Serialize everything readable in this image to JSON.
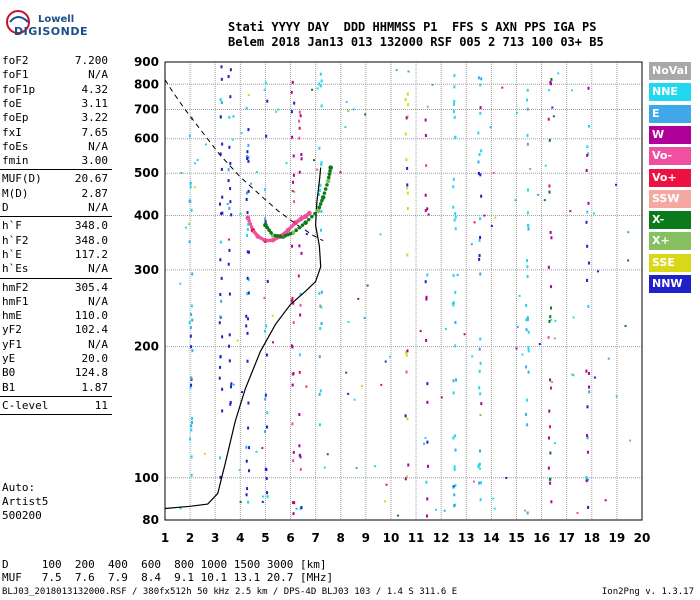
{
  "logo": {
    "line1": "Lowell",
    "line2": "DIGISONDE"
  },
  "header": {
    "line1": "Stati YYYY DAY  DDD HHMMSS P1  FFS S AXN PPS IGA PS",
    "line2": "Belem 2018 Jan13 013 132000 RSF 005 2 713 100 03+ B5"
  },
  "params_group1": [
    {
      "name": "foF2",
      "value": "7.200"
    },
    {
      "name": "foF1",
      "value": "N/A"
    },
    {
      "name": "foF1p",
      "value": "4.32"
    },
    {
      "name": "foE",
      "value": "3.11"
    },
    {
      "name": "foEp",
      "value": "3.22"
    },
    {
      "name": "fxI",
      "value": "7.65"
    },
    {
      "name": "foEs",
      "value": "N/A"
    },
    {
      "name": "fmin",
      "value": "3.00"
    }
  ],
  "params_group2": [
    {
      "name": "MUF(D)",
      "value": "20.67"
    },
    {
      "name": "M(D)",
      "value": "2.87"
    },
    {
      "name": "D",
      "value": "N/A"
    }
  ],
  "params_group3": [
    {
      "name": "h`F",
      "value": "348.0"
    },
    {
      "name": "h`F2",
      "value": "348.0"
    },
    {
      "name": "h`E",
      "value": "117.2"
    },
    {
      "name": "h`Es",
      "value": "N/A"
    }
  ],
  "params_group4": [
    {
      "name": "hmF2",
      "value": "305.4"
    },
    {
      "name": "hmF1",
      "value": "N/A"
    },
    {
      "name": "hmE",
      "value": "110.0"
    },
    {
      "name": "yF2",
      "value": "102.4"
    },
    {
      "name": "yF1",
      "value": "N/A"
    },
    {
      "name": "yE",
      "value": "20.0"
    },
    {
      "name": "B0",
      "value": "124.8"
    },
    {
      "name": "B1",
      "value": "1.87"
    }
  ],
  "params_group5": [
    {
      "name": "C-level",
      "value": "11"
    }
  ],
  "auto": {
    "line1": "Auto:",
    "line2": "Artist5",
    "line3": "500200"
  },
  "legend": [
    {
      "label": "NoVal",
      "color": "#a8a8a8"
    },
    {
      "label": "NNE",
      "color": "#22d8f0"
    },
    {
      "label": "E",
      "color": "#3fa8e8"
    },
    {
      "label": "W",
      "color": "#b0009a"
    },
    {
      "label": "Vo-",
      "color": "#f050a0"
    },
    {
      "label": "Vo+",
      "color": "#ee1040"
    },
    {
      "label": "SSW",
      "color": "#f4a8a0"
    },
    {
      "label": "X-",
      "color": "#0a7a1a"
    },
    {
      "label": "X+",
      "color": "#86c060"
    },
    {
      "label": "SSE",
      "color": "#d8d818"
    },
    {
      "label": "NNW",
      "color": "#2020c8"
    }
  ],
  "dmuf": {
    "line1": "D     100  200  400  600  800 1000 1500 3000 [km]",
    "line2": "MUF   7.5  7.6  7.9  8.4  9.1 10.1 13.1 20.7 [MHz]"
  },
  "footer": {
    "left": "BLJ03_2018013132000.RSF / 380fx512h 50 kHz 2.5 km / DPS-4D BLJ03 103 / 1.4 S 311.6 E",
    "right": "Ion2Png v. 1.3.17"
  },
  "chart_data": {
    "type": "scatter",
    "xlim": [
      1,
      20
    ],
    "ylim": [
      80,
      900
    ],
    "x_ticks": [
      1,
      2,
      3,
      4,
      5,
      6,
      7,
      8,
      9,
      10,
      11,
      12,
      13,
      14,
      15,
      16,
      17,
      18,
      19,
      20
    ],
    "y_ticks": [
      80,
      100,
      200,
      300,
      400,
      500,
      600,
      700,
      800,
      900
    ],
    "y_scale": "log",
    "grid": true,
    "traces": {
      "o_trace": [
        [
          4.3,
          395
        ],
        [
          4.5,
          370
        ],
        [
          4.7,
          358
        ],
        [
          5.0,
          350
        ],
        [
          5.3,
          351
        ],
        [
          5.6,
          358
        ],
        [
          5.9,
          370
        ],
        [
          6.2,
          385
        ],
        [
          6.4,
          392
        ],
        [
          6.6,
          398
        ],
        [
          6.75,
          405
        ]
      ],
      "x_trace": [
        [
          5.0,
          380
        ],
        [
          5.3,
          360
        ],
        [
          5.7,
          358
        ],
        [
          6.1,
          365
        ],
        [
          6.6,
          385
        ],
        [
          7.1,
          410
        ],
        [
          7.3,
          440
        ],
        [
          7.5,
          480
        ],
        [
          7.6,
          515
        ]
      ],
      "profile": [
        [
          1,
          85
        ],
        [
          2,
          86
        ],
        [
          2.7,
          87
        ],
        [
          3.1,
          92
        ],
        [
          3.4,
          108
        ],
        [
          3.8,
          135
        ],
        [
          4.2,
          160
        ],
        [
          4.8,
          195
        ],
        [
          5.4,
          225
        ],
        [
          6.0,
          250
        ],
        [
          6.6,
          268
        ],
        [
          7.0,
          282
        ],
        [
          7.2,
          305
        ],
        [
          7.15,
          340
        ],
        [
          7.0,
          380
        ],
        [
          7.05,
          430
        ],
        [
          7.15,
          480
        ],
        [
          7.2,
          515
        ]
      ],
      "dashed": [
        [
          1,
          820
        ],
        [
          1.3,
          770
        ],
        [
          1.8,
          700
        ],
        [
          2.5,
          620
        ],
        [
          3.2,
          550
        ],
        [
          4.0,
          490
        ],
        [
          4.8,
          445
        ],
        [
          5.5,
          410
        ],
        [
          6.2,
          383
        ],
        [
          6.9,
          360
        ],
        [
          7.3,
          350
        ]
      ]
    }
  }
}
